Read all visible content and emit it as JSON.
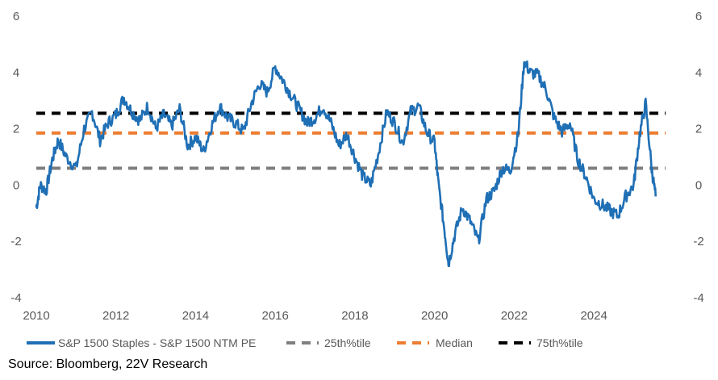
{
  "chart_data": {
    "type": "line",
    "x_ticks": [
      "2010",
      "2012",
      "2014",
      "2016",
      "2018",
      "2020",
      "2022",
      "2024"
    ],
    "y_ticks": [
      "-4",
      "-2",
      "0",
      "2",
      "4",
      "6"
    ],
    "ylim": [
      -4,
      6
    ],
    "xlim": [
      2010,
      2025.8
    ],
    "grid": false,
    "legend_position": "bottom",
    "series": [
      {
        "name": "S&P 1500 Staples  - S&P 1500 NTM PE",
        "color": "#1f6fb5",
        "x": [
          2010.0,
          2010.1,
          2010.25,
          2010.4,
          2010.55,
          2010.75,
          2011.0,
          2011.2,
          2011.4,
          2011.6,
          2011.8,
          2012.0,
          2012.2,
          2012.4,
          2012.6,
          2012.8,
          2013.0,
          2013.2,
          2013.4,
          2013.6,
          2013.8,
          2014.0,
          2014.2,
          2014.4,
          2014.6,
          2014.8,
          2015.0,
          2015.2,
          2015.4,
          2015.6,
          2015.8,
          2016.0,
          2016.2,
          2016.4,
          2016.6,
          2016.8,
          2017.0,
          2017.2,
          2017.4,
          2017.6,
          2017.8,
          2018.0,
          2018.2,
          2018.4,
          2018.6,
          2018.8,
          2019.0,
          2019.2,
          2019.4,
          2019.6,
          2019.8,
          2020.0,
          2020.1,
          2020.25,
          2020.35,
          2020.5,
          2020.7,
          2020.9,
          2021.1,
          2021.3,
          2021.5,
          2021.7,
          2021.9,
          2022.1,
          2022.25,
          2022.4,
          2022.6,
          2022.8,
          2023.0,
          2023.2,
          2023.4,
          2023.6,
          2023.8,
          2024.0,
          2024.2,
          2024.4,
          2024.6,
          2024.8,
          2025.0,
          2025.15,
          2025.3,
          2025.45,
          2025.55
        ],
        "values": [
          -0.8,
          0.0,
          -0.2,
          0.9,
          1.6,
          1.0,
          0.6,
          2.0,
          2.6,
          1.6,
          2.2,
          2.5,
          3.1,
          2.6,
          2.3,
          2.8,
          2.0,
          2.5,
          2.1,
          2.7,
          1.4,
          1.7,
          1.2,
          2.1,
          2.8,
          2.4,
          2.2,
          1.9,
          2.9,
          3.6,
          3.3,
          4.2,
          3.7,
          3.2,
          2.7,
          2.2,
          2.4,
          2.8,
          2.2,
          1.4,
          1.8,
          1.0,
          0.3,
          0.0,
          1.2,
          2.6,
          2.2,
          1.5,
          2.6,
          2.8,
          1.9,
          1.5,
          0.0,
          -1.6,
          -2.8,
          -1.8,
          -0.8,
          -1.3,
          -2.0,
          -0.5,
          -0.2,
          0.6,
          0.5,
          1.8,
          4.4,
          4.0,
          3.9,
          3.4,
          2.4,
          1.9,
          2.2,
          0.9,
          0.3,
          -0.5,
          -0.7,
          -0.9,
          -1.1,
          -0.4,
          0.0,
          1.8,
          2.9,
          0.6,
          -0.4
        ]
      },
      {
        "name": "25th%tile",
        "color": "#7f7f7f",
        "value": 0.6
      },
      {
        "name": "Median",
        "color": "#ed7d31",
        "value": 1.85
      },
      {
        "name": "75th%tile",
        "color": "#000000",
        "value": 2.55
      }
    ]
  },
  "source": "Source: Bloomberg, 22V Research"
}
